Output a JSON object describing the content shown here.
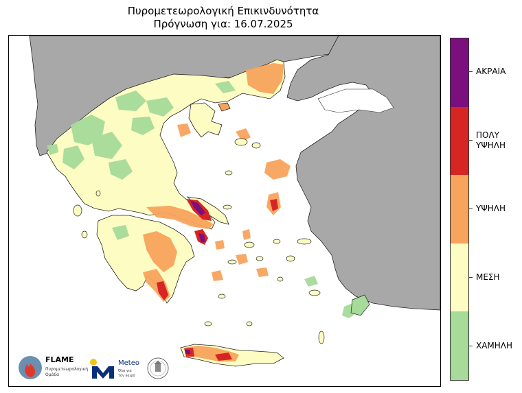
{
  "header": {
    "title": "Πυρομετεωρολογική Επικινδυνότητα",
    "subtitle": "Πρόγνωση για: 16.07.2025"
  },
  "legend": {
    "items": [
      {
        "label": "ΑΚΡΑΙΑ",
        "color": "#7b0f7d"
      },
      {
        "label": "ΠΟΛΥ ΥΨΗΛΗ",
        "color": "#d62523"
      },
      {
        "label": "ΥΨΗΛΗ",
        "color": "#f8a45c"
      },
      {
        "label": "ΜΕΣΗ",
        "color": "#fdfcc2"
      },
      {
        "label": "ΧΑΜΗΛΗ",
        "color": "#a6db9a"
      }
    ]
  },
  "colors": {
    "sea": "#ffffff",
    "neighbor_land": "#a8a8a8",
    "low": "#a6db9a",
    "medium": "#fdfcc2",
    "high": "#f8a45c",
    "very_high": "#d62523",
    "extreme": "#7b0f7d"
  },
  "logos": {
    "flame": {
      "name": "FLAME",
      "line1": "Πυρομετεωρολογική",
      "line2": "Ομάδα"
    },
    "meteo": {
      "name": "Meteo",
      "line1": "Όλα για",
      "line2": "τον καιρό"
    }
  }
}
